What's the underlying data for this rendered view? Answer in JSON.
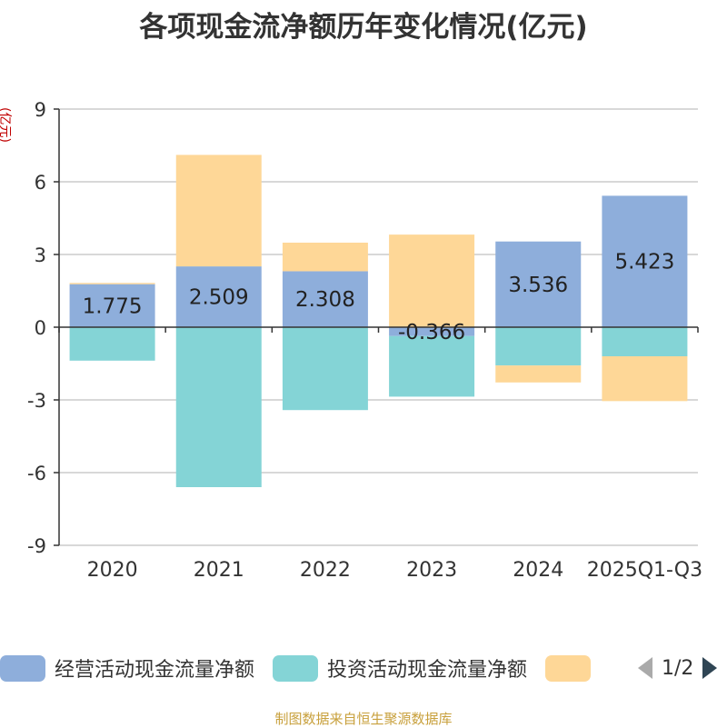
{
  "chart_data": {
    "type": "bar",
    "stacked": true,
    "title": "各项现金流净额历年变化情况(亿元)",
    "ylabel": "(亿元)",
    "xlabel": "",
    "categories": [
      "2020",
      "2021",
      "2022",
      "2023",
      "2024",
      "2025Q1-Q3"
    ],
    "ylim": [
      -9,
      9
    ],
    "yticks": [
      9,
      6,
      3,
      0,
      -3,
      -6,
      -9
    ],
    "grid": true,
    "series": [
      {
        "name": "经营活动现金流量净额",
        "color": "#8eaedb",
        "values": [
          1.775,
          2.509,
          2.308,
          -0.366,
          3.536,
          5.423
        ],
        "labels": [
          "1.775",
          "2.509",
          "2.308",
          "-0.366",
          "3.536",
          "5.423"
        ]
      },
      {
        "name": "投资活动现金流量净额",
        "color": "#84d4d6",
        "values": [
          -1.38,
          -6.6,
          -3.42,
          -2.5,
          -1.58,
          -1.2
        ]
      },
      {
        "name": "",
        "color": "#fed797",
        "values": [
          0.05,
          4.6,
          1.18,
          3.82,
          -0.7,
          -1.85
        ]
      }
    ]
  },
  "legend": {
    "items": [
      {
        "label": "经营活动现金流量净额",
        "color": "#8eaedb"
      },
      {
        "label": "投资活动现金流量净额",
        "color": "#84d4d6"
      },
      {
        "label": "",
        "color": "#fed797"
      }
    ],
    "page_text": "1/2",
    "prev_color": "#aaaaaa",
    "next_color": "#2f4554"
  },
  "source": "制图数据来自恒生聚源数据库"
}
